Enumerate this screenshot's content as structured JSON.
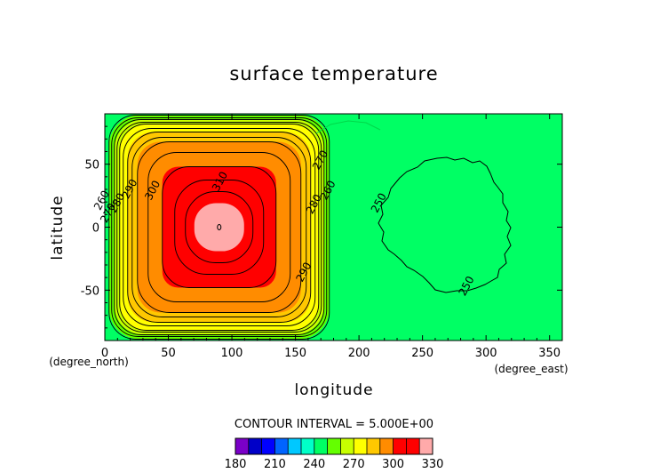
{
  "chart_data": {
    "type": "contour",
    "title": "surface temperature",
    "xlabel": "longitude",
    "ylabel": "latitude",
    "x_unit": "(degree_east)",
    "y_unit": "(degree_north)",
    "xlim": [
      0,
      360
    ],
    "ylim": [
      -90,
      90
    ],
    "x_ticks": [
      0,
      50,
      100,
      150,
      200,
      250,
      300,
      350
    ],
    "y_ticks": [
      -50,
      0,
      50
    ],
    "contour_interval_text": "CONTOUR INTERVAL = 5.000E+00",
    "warm_region": {
      "center_lon": 90,
      "center_lat": 0,
      "max_value": 315,
      "lon_range": [
        0,
        180
      ]
    },
    "cold_region": {
      "center_lon": 270,
      "center_lat": 0,
      "min_value": 250,
      "lon_range": [
        180,
        360
      ]
    },
    "contour_labels": [
      {
        "text": "310",
        "lon": 93,
        "lat": 35
      },
      {
        "text": "300",
        "lon": 40,
        "lat": 28
      },
      {
        "text": "290",
        "lon": 22,
        "lat": 29
      },
      {
        "text": "280",
        "lon": 12,
        "lat": 18
      },
      {
        "text": "270",
        "lon": 5,
        "lat": 10
      },
      {
        "text": "260",
        "lon": 0,
        "lat": 20
      },
      {
        "text": "270",
        "lon": 172,
        "lat": 52
      },
      {
        "text": "260",
        "lon": 178,
        "lat": 28
      },
      {
        "text": "280",
        "lon": 167,
        "lat": 17
      },
      {
        "text": "290",
        "lon": 159,
        "lat": -37
      },
      {
        "text": "250",
        "lon": 218,
        "lat": 18
      },
      {
        "text": "250",
        "lon": 287,
        "lat": -48
      }
    ],
    "colorbar": {
      "levels": [
        180,
        190,
        200,
        210,
        220,
        230,
        240,
        250,
        260,
        270,
        280,
        290,
        300,
        310,
        320,
        330
      ],
      "tick_labels": [
        "180",
        "210",
        "240",
        "270",
        "300",
        "330"
      ],
      "colors": [
        "#7a00c8",
        "#0000c8",
        "#0000ff",
        "#0064ff",
        "#00c8ff",
        "#00ffc8",
        "#00ff64",
        "#64ff00",
        "#c8ff00",
        "#ffff00",
        "#ffc800",
        "#ff8c00",
        "#ff0000",
        "#ff0000",
        "#ffaaaa"
      ]
    },
    "grid": false
  }
}
